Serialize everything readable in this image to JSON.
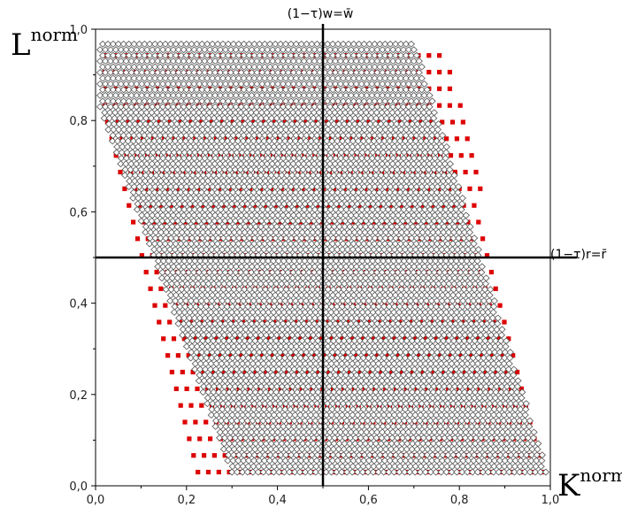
{
  "chart_data": {
    "type": "scatter",
    "title": "",
    "xlabel": {
      "base": "K",
      "sup": "norm"
    },
    "ylabel": {
      "base": "L",
      "sup": "norm"
    },
    "xlim": [
      0,
      1
    ],
    "ylim": [
      0,
      1
    ],
    "xticks": [
      0.0,
      0.2,
      0.4,
      0.6,
      0.8,
      1.0
    ],
    "yticks": [
      0.0,
      0.2,
      0.4,
      0.6,
      0.8,
      1.0
    ],
    "xtick_labels": [
      "0,0",
      "0,2",
      "0,4",
      "0,6",
      "0,8",
      "1,0"
    ],
    "ytick_labels": [
      "0,0",
      "0,2",
      "0,4",
      "0,6",
      "0,8",
      "1,0"
    ],
    "grid": false,
    "reference_lines": [
      {
        "orientation": "vertical",
        "value": 0.5,
        "label": "(1−τ)w=w̄"
      },
      {
        "orientation": "horizontal",
        "value": 0.5,
        "label": "(1−τ)r=r̄"
      }
    ],
    "series": [
      {
        "marker": "open-diamond",
        "color": "#555555",
        "region": {
          "description_points": "dense grid filling a parallelogram band",
          "y_range": [
            0.03,
            0.975
          ],
          "dy": 0.0125,
          "dx": 0.0115,
          "left_edge": [
            [
              0.975,
              0.01
            ],
            [
              0.83,
              0.01
            ],
            [
              0.03,
              0.3
            ]
          ],
          "right_edge": [
            [
              0.975,
              0.7
            ],
            [
              0.03,
              0.995
            ]
          ]
        }
      },
      {
        "marker": "filled-square",
        "color": "#dd0000",
        "rows": {
          "y_start": 0.03,
          "y_step": 0.0365,
          "count": 26,
          "left_edge": [
            [
              0.95,
              0.02
            ],
            [
              0.82,
              0.02
            ],
            [
              0.03,
              0.225
            ]
          ],
          "right_edge": [
            [
              0.95,
              0.775
            ],
            [
              0.03,
              0.995
            ]
          ],
          "dx": 0.023
        }
      }
    ]
  }
}
